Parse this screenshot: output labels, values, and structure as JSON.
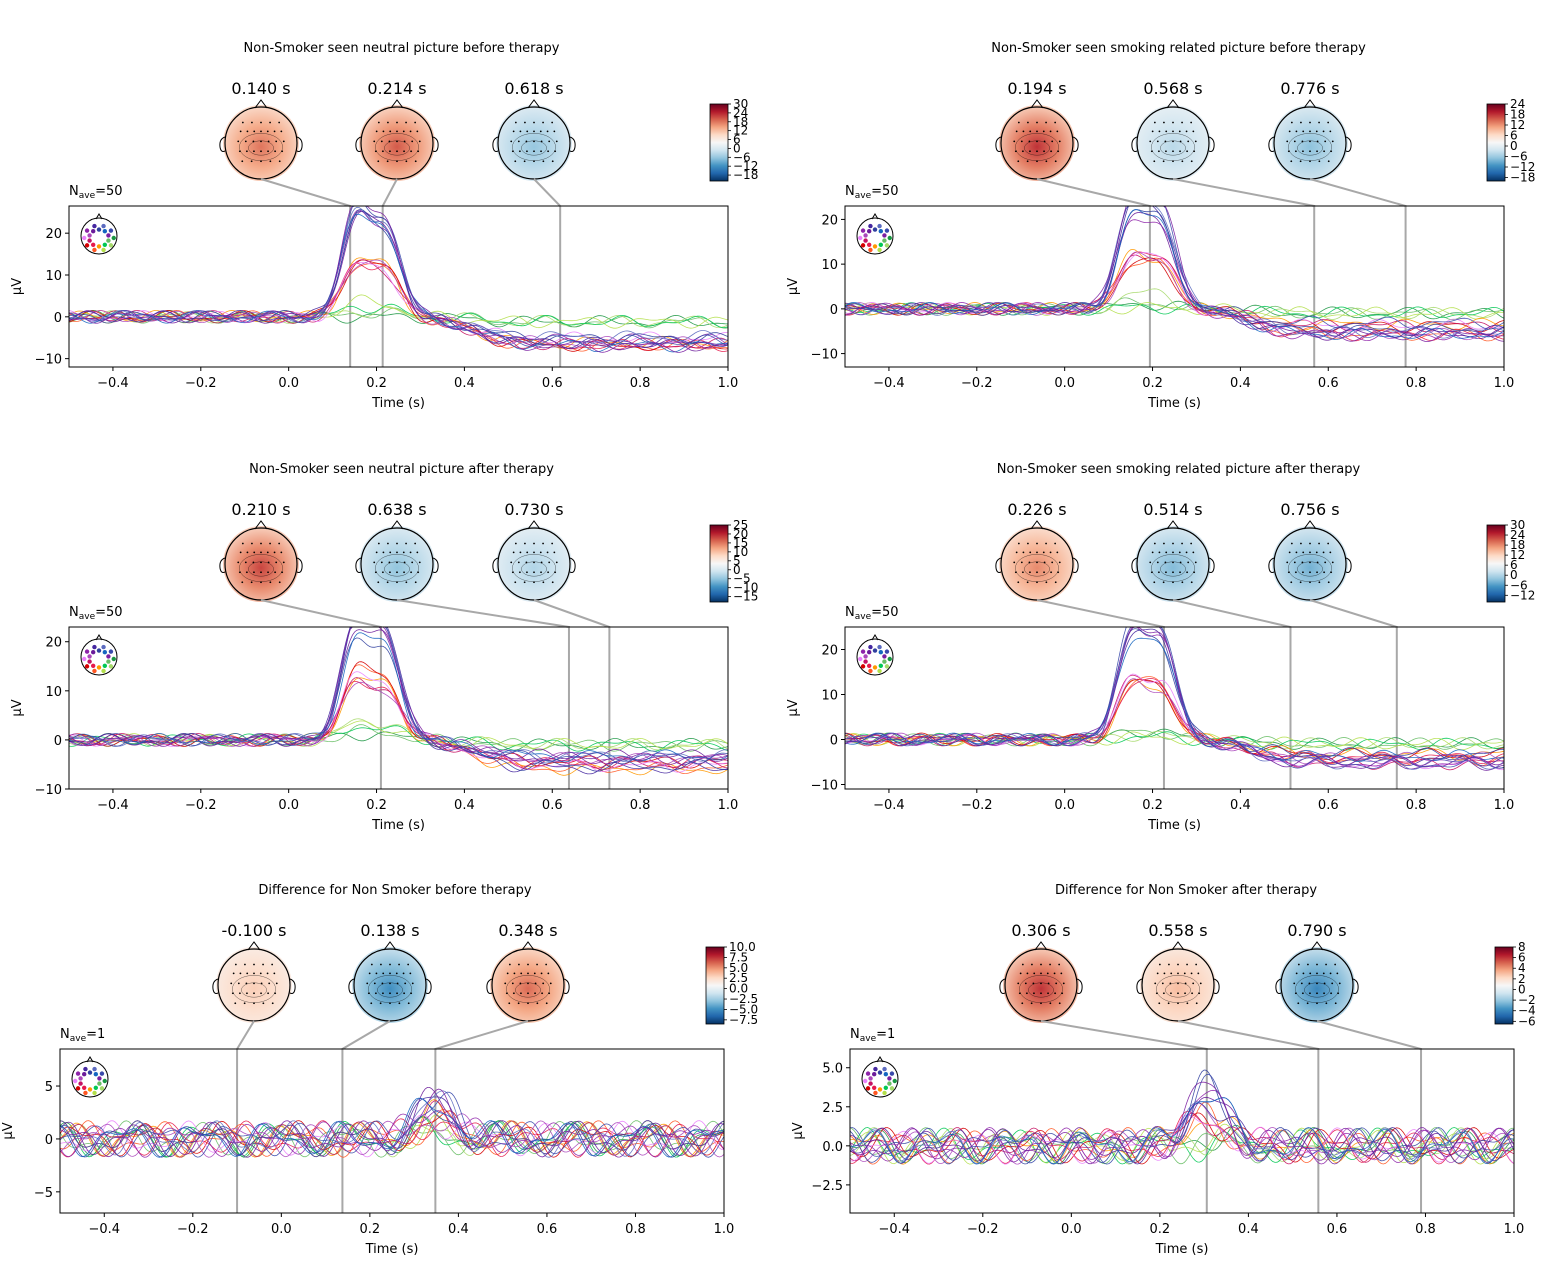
{
  "colors": {
    "frame": "#000000",
    "guide": "#a8a8a8",
    "diverging": [
      "#053061",
      "#2166ac",
      "#4393c3",
      "#92c5de",
      "#d1e5f0",
      "#f7f7f7",
      "#fddbc7",
      "#f4a582",
      "#d6604d",
      "#b2182b",
      "#67001f"
    ],
    "channel_palette": [
      "#1a9641",
      "#66bd63",
      "#a6d96a",
      "#00c853",
      "#b2df4a",
      "#ff9800",
      "#ff5722",
      "#e6194b",
      "#d50000",
      "#c51162",
      "#ea80fc",
      "#ab47bc",
      "#8e24aa",
      "#6a1b9a",
      "#4527a0",
      "#303f9f",
      "#5c6bc0",
      "#1565c0",
      "#3949ab",
      "#7b1fa2"
    ]
  },
  "chart_data": [
    {
      "type": "line",
      "title": "Non-Smoker seen neutral picture before therapy",
      "nave": "1",
      "nave_prefix": "N",
      "nave_sub": "ave",
      "nave_value": "=50",
      "xlabel": "Time (s)",
      "ylabel": "µV",
      "xlim": [
        -0.5,
        1.0
      ],
      "ylim": [
        -12,
        26.5
      ],
      "xticks": [
        -0.4,
        -0.2,
        0.0,
        0.2,
        0.4,
        0.6,
        0.8,
        1.0
      ],
      "xtick_labels": [
        "−0.4",
        "−0.2",
        "0.0",
        "0.2",
        "0.4",
        "0.6",
        "0.8",
        "1.0"
      ],
      "yticks": [
        -10,
        0,
        10,
        20
      ],
      "ytick_labels": [
        "−10",
        "0",
        "10",
        "20"
      ],
      "topo_times": [
        0.14,
        0.214,
        0.618
      ],
      "topo_labels": [
        "0.140 s",
        "0.214 s",
        "0.618 s"
      ],
      "topo_values": [
        18,
        20,
        -6
      ],
      "cbar_range": [
        -22,
        30
      ],
      "cbar_ticks": [
        30,
        24,
        18,
        12,
        6,
        0,
        -6,
        -12,
        -18
      ],
      "cbar_labels": [
        "30",
        "24",
        "18",
        "12",
        "6",
        "0",
        "−6",
        "−12",
        "−18"
      ],
      "peak_strong": [
        23,
        24
      ],
      "peak_weak": [
        11,
        12
      ],
      "late": -6
    },
    {
      "type": "line",
      "title": "Non-Smoker seen smoking related picture before therapy",
      "nave_prefix": "N",
      "nave_sub": "ave",
      "nave_value": "=50",
      "xlabel": "Time (s)",
      "ylabel": "µV",
      "xlim": [
        -0.5,
        1.0
      ],
      "ylim": [
        -13,
        23
      ],
      "xticks": [
        -0.4,
        -0.2,
        0.0,
        0.2,
        0.4,
        0.6,
        0.8,
        1.0
      ],
      "xtick_labels": [
        "−0.4",
        "−0.2",
        "0.0",
        "0.2",
        "0.4",
        "0.6",
        "0.8",
        "1.0"
      ],
      "yticks": [
        -10,
        0,
        10,
        20
      ],
      "ytick_labels": [
        "−10",
        "0",
        "10",
        "20"
      ],
      "topo_times": [
        0.194,
        0.568,
        0.776
      ],
      "topo_labels": [
        "0.194 s",
        "0.568 s",
        "0.776 s"
      ],
      "topo_values": [
        18,
        -4,
        -7
      ],
      "cbar_range": [
        -20,
        24
      ],
      "cbar_ticks": [
        24,
        18,
        12,
        6,
        0,
        -6,
        -12,
        -18
      ],
      "cbar_labels": [
        "24",
        "18",
        "12",
        "6",
        "0",
        "−6",
        "−12",
        "−18"
      ],
      "peak_strong": [
        21,
        19
      ],
      "peak_weak": [
        10,
        10
      ],
      "late": -5
    },
    {
      "type": "line",
      "title": "Non-Smoker seen neutral picture after therapy",
      "nave_prefix": "N",
      "nave_sub": "ave",
      "nave_value": "=50",
      "xlabel": "Time (s)",
      "ylabel": "µV",
      "xlim": [
        -0.5,
        1.0
      ],
      "ylim": [
        -10,
        23
      ],
      "xticks": [
        -0.4,
        -0.2,
        0.0,
        0.2,
        0.4,
        0.6,
        0.8,
        1.0
      ],
      "xtick_labels": [
        "−0.4",
        "−0.2",
        "0.0",
        "0.2",
        "0.4",
        "0.6",
        "0.8",
        "1.0"
      ],
      "yticks": [
        -10,
        0,
        10,
        20
      ],
      "ytick_labels": [
        "−10",
        "0",
        "10",
        "20"
      ],
      "topo_times": [
        0.21,
        0.638,
        0.73
      ],
      "topo_labels": [
        "0.210 s",
        "0.638 s",
        "0.730 s"
      ],
      "topo_values": [
        18,
        -5,
        -3
      ],
      "cbar_range": [
        -18,
        25
      ],
      "cbar_ticks": [
        25,
        20,
        15,
        10,
        5,
        0,
        -5,
        -10,
        -15
      ],
      "cbar_labels": [
        "25",
        "20",
        "15",
        "10",
        "5",
        "0",
        "−5",
        "−10",
        "−15"
      ],
      "peak_strong": [
        21,
        20
      ],
      "peak_weak": [
        11,
        11
      ],
      "late": -5
    },
    {
      "type": "line",
      "title": "Non-Smoker seen smoking related picture after therapy",
      "nave_prefix": "N",
      "nave_sub": "ave",
      "nave_value": "=50",
      "xlabel": "Time (s)",
      "ylabel": "µV",
      "xlim": [
        -0.5,
        1.0
      ],
      "ylim": [
        -11,
        25
      ],
      "xticks": [
        -0.4,
        -0.2,
        0.0,
        0.2,
        0.4,
        0.6,
        0.8,
        1.0
      ],
      "xtick_labels": [
        "−0.4",
        "−0.2",
        "0.0",
        "0.2",
        "0.4",
        "0.6",
        "0.8",
        "1.0"
      ],
      "yticks": [
        -10,
        0,
        10,
        20
      ],
      "ytick_labels": [
        "−10",
        "0",
        "10",
        "20"
      ],
      "topo_times": [
        0.226,
        0.514,
        0.756
      ],
      "topo_labels": [
        "0.226 s",
        "0.514 s",
        "0.756 s"
      ],
      "topo_values": [
        18,
        -3,
        -4
      ],
      "cbar_range": [
        -16,
        30
      ],
      "cbar_ticks": [
        30,
        24,
        18,
        12,
        6,
        0,
        -6,
        -12
      ],
      "cbar_labels": [
        "30",
        "24",
        "18",
        "12",
        "6",
        "0",
        "−6",
        "−12"
      ],
      "peak_strong": [
        22,
        20
      ],
      "peak_weak": [
        11,
        10
      ],
      "late": -5
    },
    {
      "type": "line",
      "title": "Difference for Non Smoker before therapy",
      "nave_prefix": "N",
      "nave_sub": "ave",
      "nave_value": "=1",
      "xlabel": "Time (s)",
      "ylabel": "µV",
      "xlim": [
        -0.5,
        1.0
      ],
      "ylim": [
        -7,
        8.5
      ],
      "xticks": [
        -0.4,
        -0.2,
        0.0,
        0.2,
        0.4,
        0.6,
        0.8,
        1.0
      ],
      "xtick_labels": [
        "−0.4",
        "−0.2",
        "0.0",
        "0.2",
        "0.4",
        "0.6",
        "0.8",
        "1.0"
      ],
      "yticks": [
        -5,
        0,
        5
      ],
      "ytick_labels": [
        "−5",
        "0",
        "5"
      ],
      "topo_times": [
        -0.1,
        0.138,
        0.348
      ],
      "topo_labels": [
        "-0.100 s",
        "0.138 s",
        "0.348 s"
      ],
      "topo_values": [
        3,
        -5,
        6
      ],
      "cbar_range": [
        -8.5,
        10
      ],
      "cbar_ticks": [
        10,
        7.5,
        5,
        2.5,
        0,
        -2.5,
        -5,
        -7.5
      ],
      "cbar_labels": [
        "10.0",
        "7.5",
        "5.0",
        "2.5",
        "0.0",
        "−2.5",
        "−5.0",
        "−7.5"
      ],
      "peak_strong": [
        4,
        3
      ],
      "peak_weak": [
        2,
        2
      ],
      "late": 0
    },
    {
      "type": "line",
      "title": "Difference for Non Smoker after therapy",
      "nave_prefix": "N",
      "nave_sub": "ave",
      "nave_value": "=1",
      "xlabel": "Time (s)",
      "ylabel": "µV",
      "xlim": [
        -0.5,
        1.0
      ],
      "ylim": [
        -4.3,
        6.2
      ],
      "xticks": [
        -0.4,
        -0.2,
        0.0,
        0.2,
        0.4,
        0.6,
        0.8,
        1.0
      ],
      "xtick_labels": [
        "−0.4",
        "−0.2",
        "0.0",
        "0.2",
        "0.4",
        "0.6",
        "0.8",
        "1.0"
      ],
      "yticks": [
        -2.5,
        0,
        2.5,
        5
      ],
      "ytick_labels": [
        "−2.5",
        "0.0",
        "2.5",
        "5.0"
      ],
      "topo_times": [
        0.306,
        0.558,
        0.79
      ],
      "topo_labels": [
        "0.306 s",
        "0.558 s",
        "0.790 s"
      ],
      "topo_values": [
        6,
        3,
        -4
      ],
      "cbar_range": [
        -6.5,
        8
      ],
      "cbar_ticks": [
        8,
        6,
        4,
        2,
        0,
        -2,
        -4,
        -6
      ],
      "cbar_labels": [
        "8",
        "6",
        "4",
        "2",
        "0",
        "−2",
        "−4",
        "−6"
      ],
      "peak_strong": [
        4,
        3
      ],
      "peak_weak": [
        2,
        2
      ],
      "late": -1
    }
  ]
}
